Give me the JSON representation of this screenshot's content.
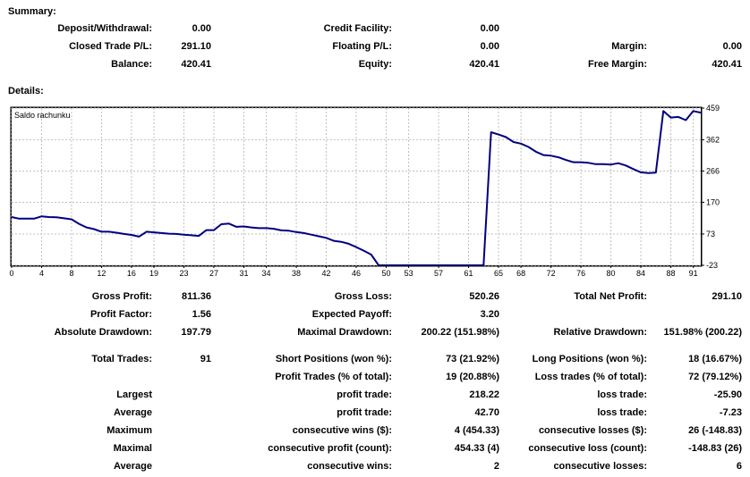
{
  "summary": {
    "heading": "Summary:",
    "deposit_label": "Deposit/Withdrawal:",
    "deposit_value": "0.00",
    "credit_label": "Credit Facility:",
    "credit_value": "0.00",
    "closed_label": "Closed Trade P/L:",
    "closed_value": "291.10",
    "floating_label": "Floating P/L:",
    "floating_value": "0.00",
    "margin_label": "Margin:",
    "margin_value": "0.00",
    "balance_label": "Balance:",
    "balance_value": "420.41",
    "equity_label": "Equity:",
    "equity_value": "420.41",
    "free_margin_label": "Free Margin:",
    "free_margin_value": "420.41"
  },
  "details": {
    "heading": "Details:",
    "gross_profit_label": "Gross Profit:",
    "gross_profit_value": "811.36",
    "gross_loss_label": "Gross Loss:",
    "gross_loss_value": "520.26",
    "total_net_label": "Total Net Profit:",
    "total_net_value": "291.10",
    "profit_factor_label": "Profit Factor:",
    "profit_factor_value": "1.56",
    "expected_payoff_label": "Expected Payoff:",
    "expected_payoff_value": "3.20",
    "abs_dd_label": "Absolute Drawdown:",
    "abs_dd_value": "197.79",
    "max_dd_label": "Maximal Drawdown:",
    "max_dd_value": "200.22 (151.98%)",
    "rel_dd_label": "Relative Drawdown:",
    "rel_dd_value": "151.98% (200.22)",
    "total_trades_label": "Total Trades:",
    "total_trades_value": "91",
    "short_label": "Short Positions (won %):",
    "short_value": "73 (21.92%)",
    "long_label": "Long Positions (won %):",
    "long_value": "18 (16.67%)",
    "profit_trades_label": "Profit Trades (% of total):",
    "profit_trades_value": "19 (20.88%)",
    "loss_trades_label": "Loss trades (% of total):",
    "loss_trades_value": "72 (79.12%)",
    "rows": [
      {
        "left": "Largest",
        "mid_label": "profit trade:",
        "mid_value": "218.22",
        "right_label": "loss trade:",
        "right_value": "-25.90"
      },
      {
        "left": "Average",
        "mid_label": "profit trade:",
        "mid_value": "42.70",
        "right_label": "loss trade:",
        "right_value": "-7.23"
      },
      {
        "left": "Maximum",
        "mid_label": "consecutive wins ($):",
        "mid_value": "4 (454.33)",
        "right_label": "consecutive losses ($):",
        "right_value": "26 (-148.83)"
      },
      {
        "left": "Maximal",
        "mid_label": "consecutive profit (count):",
        "mid_value": "454.33 (4)",
        "right_label": "consecutive loss (count):",
        "right_value": "-148.83 (26)"
      },
      {
        "left": "Average",
        "mid_label": "consecutive wins:",
        "mid_value": "2",
        "right_label": "consecutive losses:",
        "right_value": "6"
      }
    ]
  },
  "colors": {
    "line": "#000080",
    "grid": "#c0c0c0"
  },
  "chart_data": {
    "type": "line",
    "title": "Saldo rachunku",
    "xlabel": "",
    "ylabel": "",
    "x_ticks": [
      "0",
      "4",
      "8",
      "12",
      "16",
      "19",
      "23",
      "27",
      "31",
      "34",
      "38",
      "42",
      "46",
      "50",
      "53",
      "57",
      "61",
      "65",
      "68",
      "72",
      "76",
      "80",
      "84",
      "88",
      "91"
    ],
    "y_ticks": [
      "459",
      "362",
      "266",
      "170",
      "73",
      "-23"
    ],
    "xlim": [
      0,
      92
    ],
    "ylim": [
      -23,
      459
    ],
    "grid": true,
    "series": [
      {
        "x": [
          0,
          1,
          2,
          3,
          4,
          5,
          6,
          7,
          8,
          9,
          10,
          11,
          12,
          13,
          14,
          15,
          16,
          17,
          18,
          19,
          20,
          21,
          22,
          23,
          24,
          25,
          26,
          27,
          28,
          29,
          30,
          31,
          32,
          33,
          34,
          35,
          36,
          37,
          38,
          39,
          40,
          41,
          42,
          43,
          44,
          45,
          46,
          47,
          48,
          49,
          50,
          51,
          52,
          53,
          54,
          55,
          56,
          57,
          58,
          59,
          60,
          61,
          62,
          63,
          64,
          65,
          66,
          67,
          68,
          69,
          70,
          71,
          72,
          73,
          74,
          75,
          76,
          77,
          78,
          79,
          80,
          81,
          82,
          83,
          84,
          85,
          86,
          87,
          88,
          89,
          90,
          91,
          92
        ],
        "y": [
          125,
          120,
          120,
          120,
          127,
          125,
          124,
          121,
          118,
          104,
          93,
          88,
          80,
          80,
          77,
          73,
          70,
          65,
          80,
          78,
          76,
          74,
          73,
          71,
          69,
          67,
          85,
          85,
          103,
          105,
          95,
          96,
          93,
          91,
          91,
          89,
          84,
          83,
          79,
          76,
          71,
          66,
          61,
          52,
          49,
          43,
          33,
          22,
          10,
          -23,
          -23,
          -23,
          -23,
          -23,
          -23,
          -23,
          -23,
          -23,
          -23,
          -23,
          -23,
          -23,
          -23,
          -23,
          385,
          378,
          370,
          355,
          350,
          340,
          325,
          315,
          313,
          308,
          300,
          293,
          293,
          291,
          287,
          287,
          286,
          290,
          283,
          272,
          262,
          260,
          261,
          450,
          430,
          432,
          422,
          450,
          445
        ]
      }
    ]
  }
}
